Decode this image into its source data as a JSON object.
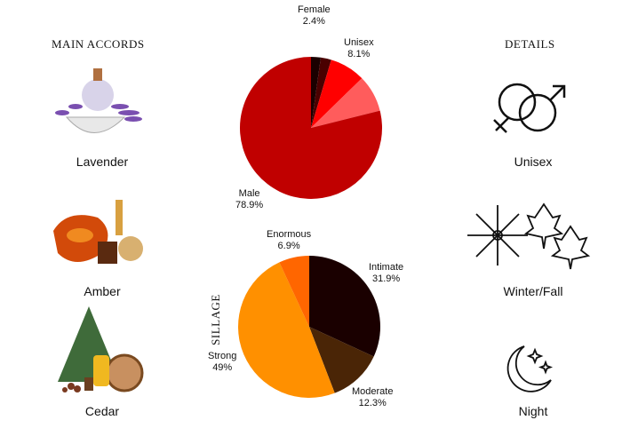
{
  "accords": {
    "title": "MAIN ACCORDS",
    "items": [
      {
        "label": "Lavender",
        "icon": "lavender-image"
      },
      {
        "label": "Amber",
        "icon": "amber-image"
      },
      {
        "label": "Cedar",
        "icon": "cedar-image"
      }
    ]
  },
  "details": {
    "title": "DETAILS",
    "items": [
      {
        "label": "Unisex",
        "icon": "gender-symbols-icon"
      },
      {
        "label": "Winter/Fall",
        "icon": "snowflake-leaves-icon"
      },
      {
        "label": "Night",
        "icon": "moon-stars-icon"
      }
    ]
  },
  "chart_data": [
    {
      "type": "pie",
      "title": "",
      "slices": [
        {
          "label": "",
          "value": 2.2,
          "color": "#1a0000",
          "shown": ""
        },
        {
          "label": "Female",
          "value": 2.4,
          "color": "#4a0000",
          "shown": "2.4%"
        },
        {
          "label": "Unisex",
          "value": 8.1,
          "color": "#ff0000",
          "shown": "8.1%"
        },
        {
          "label": "",
          "value": 8.4,
          "color": "#ff5c5c",
          "shown": ""
        },
        {
          "label": "Male",
          "value": 78.9,
          "color": "#c00000",
          "shown": "78.9%"
        }
      ]
    },
    {
      "type": "pie",
      "title": "SILLAGE",
      "slices": [
        {
          "label": "Intimate",
          "value": 31.9,
          "color": "#1a0000",
          "shown": "31.9%"
        },
        {
          "label": "Moderate",
          "value": 12.3,
          "color": "#4a2506",
          "shown": "12.3%"
        },
        {
          "label": "Strong",
          "value": 49,
          "color": "#ff9000",
          "shown": "49%"
        },
        {
          "label": "Enormous",
          "value": 6.9,
          "color": "#ff6600",
          "shown": "6.9%"
        }
      ]
    }
  ]
}
